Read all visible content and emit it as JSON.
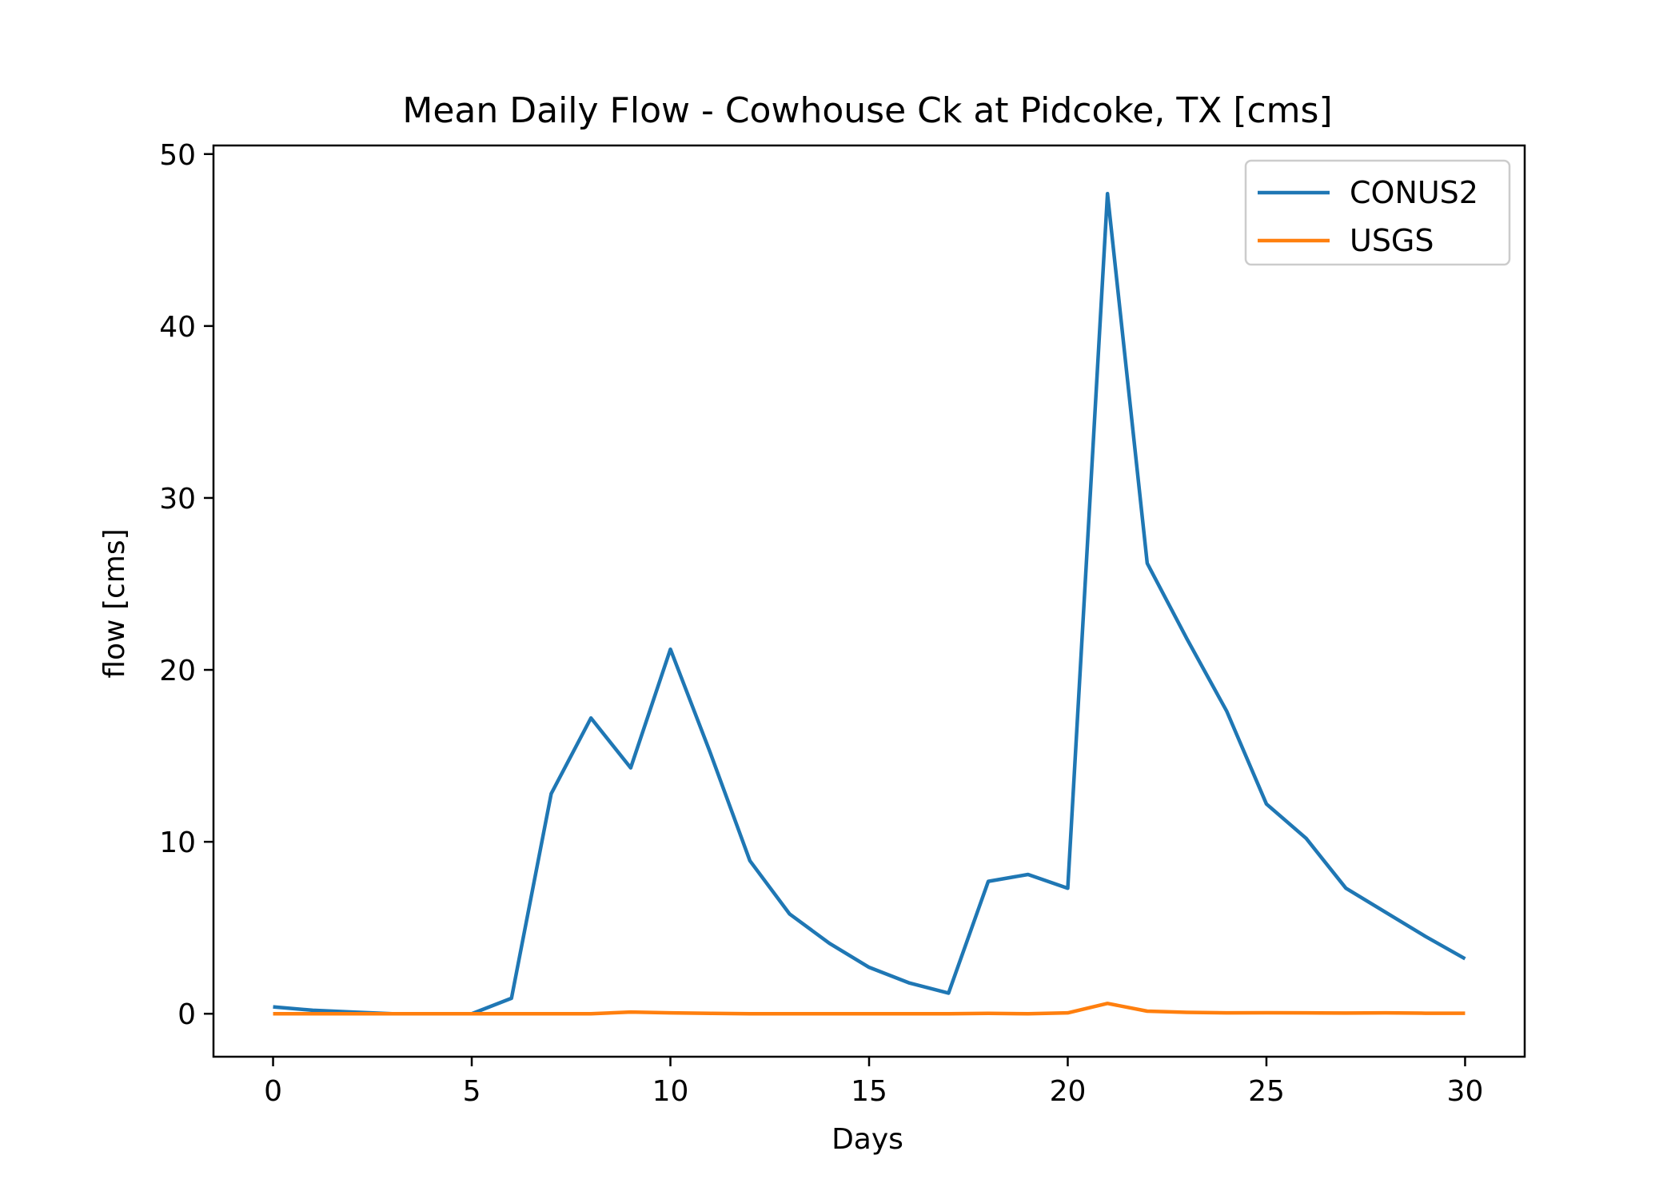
{
  "chart_data": {
    "type": "line",
    "title": "Mean Daily Flow - Cowhouse Ck at Pidcoke, TX [cms]",
    "xlabel": "Days",
    "ylabel": "flow [cms]",
    "xlim": [
      -1.5,
      31.5
    ],
    "ylim": [
      -2.5,
      50.5
    ],
    "xticks": [
      0,
      5,
      10,
      15,
      20,
      25,
      30
    ],
    "yticks": [
      0,
      10,
      20,
      30,
      40,
      50
    ],
    "grid": false,
    "legend_position": "upper right",
    "x": [
      0,
      1,
      2,
      3,
      4,
      5,
      6,
      7,
      8,
      9,
      10,
      11,
      12,
      13,
      14,
      15,
      16,
      17,
      18,
      19,
      20,
      21,
      22,
      23,
      24,
      25,
      26,
      27,
      28,
      29,
      30
    ],
    "series": [
      {
        "name": "CONUS2",
        "color": "#1f77b4",
        "values": [
          0.4,
          0.2,
          0.1,
          0.0,
          0.0,
          0.0,
          0.9,
          12.8,
          17.2,
          14.3,
          21.2,
          15.2,
          8.9,
          5.8,
          4.1,
          2.7,
          1.8,
          1.2,
          7.7,
          8.1,
          7.3,
          47.7,
          26.2,
          21.8,
          17.6,
          12.2,
          10.2,
          7.3,
          5.9,
          4.5,
          3.2
        ]
      },
      {
        "name": "USGS",
        "color": "#ff7f0e",
        "values": [
          0.0,
          0.0,
          0.0,
          0.0,
          0.0,
          0.0,
          0.0,
          0.0,
          0.0,
          0.1,
          0.05,
          0.02,
          0.0,
          0.0,
          0.0,
          0.0,
          0.0,
          0.0,
          0.02,
          0.0,
          0.05,
          0.6,
          0.15,
          0.08,
          0.05,
          0.06,
          0.05,
          0.04,
          0.05,
          0.03,
          0.03
        ]
      }
    ]
  }
}
